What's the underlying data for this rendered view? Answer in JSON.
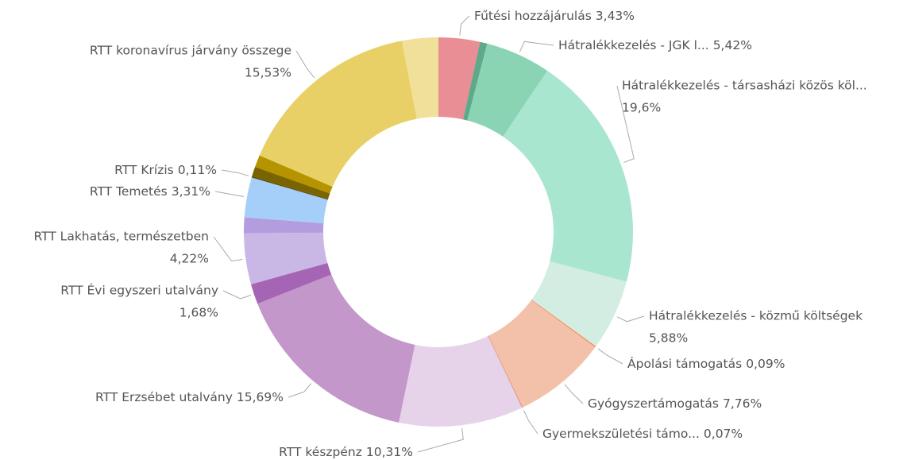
{
  "chart_data": {
    "type": "donut",
    "categories": [
      "Fűtési hozzájárulás",
      null,
      "Hátralékkezelés - JGK l...",
      "Hátralékkezelés - társasházi közös köl...",
      "Hátralékkezelés - közmű költségek",
      "Ápolási támogatás",
      "Gyógyszertámogatás",
      "Gyermekszületési támo...",
      "RTT készpénz",
      "RTT Erzsébet utalvány",
      "RTT Évi egyszeri utalvány",
      "RTT Lakhatás, természetben",
      null,
      "RTT Temetés",
      "RTT Krízis",
      null,
      null,
      "RTT koronavírus járvány összege",
      null
    ],
    "values": [
      3.43,
      0.6,
      5.42,
      19.6,
      5.88,
      0.09,
      7.76,
      0.07,
      10.31,
      15.69,
      1.68,
      4.22,
      1.3,
      3.31,
      0.11,
      0.8,
      1.0,
      15.53,
      3.0
    ],
    "value_labels": [
      "3,43%",
      null,
      "5,42%",
      "19,6%",
      "5,88%",
      "0,09%",
      "7,76%",
      "0,07%",
      "10,31%",
      "15,69%",
      "1,68%",
      "4,22%",
      null,
      "3,31%",
      "0,11%",
      null,
      null,
      "15,53%",
      null
    ],
    "colors": [
      "#e88e94",
      "#5fa98a",
      "#8ad4b4",
      "#a8e6d0",
      "#d3ede3",
      "#ee8a55",
      "#f3c1aa",
      "#d98a77",
      "#e6d3ea",
      "#c497cb",
      "#a665b4",
      "#c9b8e6",
      "#b49ddf",
      "#a5cff8",
      "#5a4a00",
      "#7a6400",
      "#b59400",
      "#e8d067",
      "#f1e09a"
    ]
  }
}
